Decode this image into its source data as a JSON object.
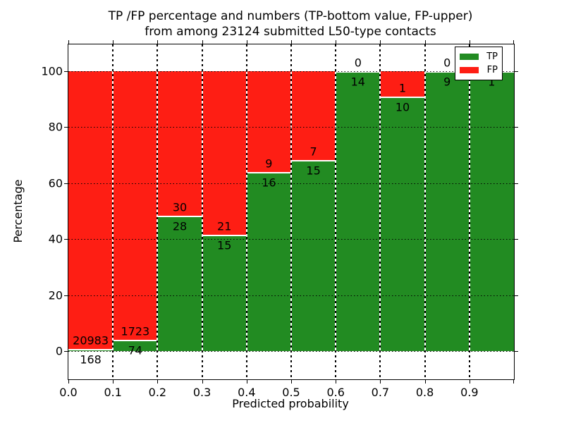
{
  "title": {
    "line1": "TP /FP percentage and numbers (TP-bottom value, FP-upper)",
    "line2": "from among 23124 submitted L50-type contacts"
  },
  "chart_data": {
    "type": "bar",
    "stacked": true,
    "normalized_to": "percentage per bin",
    "title": "TP /FP percentage and numbers (TP-bottom value, FP-upper) from among 23124 submitted L50-type contacts",
    "total_contacts": 23124,
    "xlabel": "Predicted probability",
    "ylabel": "Percentage",
    "xlim": [
      0.0,
      1.0
    ],
    "ylim": [
      -10,
      110
    ],
    "x_tick_labels": [
      "0.0",
      "0.1",
      "0.2",
      "0.3",
      "0.4",
      "0.5",
      "0.6",
      "0.7",
      "0.8",
      "0.9"
    ],
    "y_tick_values": [
      0,
      20,
      40,
      60,
      80,
      100
    ],
    "y_tick_labels": [
      "0",
      "20",
      "40",
      "60",
      "80",
      "100"
    ],
    "grid": "dotted black, drawn above bars",
    "bin_starts": [
      0.0,
      0.1,
      0.2,
      0.3,
      0.4,
      0.5,
      0.6,
      0.7,
      0.8,
      0.9
    ],
    "bin_width": 0.1,
    "series": [
      {
        "name": "TP",
        "position": "bottom",
        "color": "#228b22",
        "counts": [
          168,
          74,
          28,
          15,
          16,
          15,
          14,
          10,
          9,
          1
        ]
      },
      {
        "name": "FP",
        "position": "top",
        "color": "#fe1e14",
        "counts": [
          20983,
          1723,
          30,
          21,
          9,
          7,
          0,
          1,
          0,
          0
        ]
      }
    ],
    "tp_percent": [
      0.79,
      4.12,
      48.28,
      41.67,
      64.0,
      68.18,
      100.0,
      90.91,
      100.0,
      100.0
    ],
    "bar_labels": {
      "fp": [
        "20983",
        "1723",
        "30",
        "21",
        "9",
        "7",
        "0",
        "1",
        "0",
        ""
      ],
      "tp": [
        "168",
        "74",
        "28",
        "15",
        "16",
        "15",
        "14",
        "10",
        "9",
        "1"
      ]
    },
    "legend": {
      "location": "upper right",
      "entries": [
        {
          "label": "TP",
          "color": "#228b22"
        },
        {
          "label": "FP",
          "color": "#fe1e14"
        }
      ]
    }
  }
}
